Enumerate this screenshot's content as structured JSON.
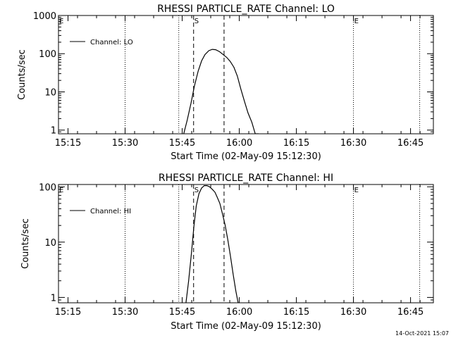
{
  "chart_data": [
    {
      "type": "line",
      "title": "RHESSI PARTICLE_RATE Channel: LO",
      "xlabel": "Start Time (02-May-09 15:12:30)",
      "ylabel": "Counts/sec",
      "yscale": "log",
      "ylim": [
        0.8,
        1000
      ],
      "xlim": [
        0,
        98.5
      ],
      "xticks": [
        {
          "x": 2.5,
          "label": "15:15"
        },
        {
          "x": 17.5,
          "label": "15:30"
        },
        {
          "x": 32.5,
          "label": "15:45"
        },
        {
          "x": 47.5,
          "label": "16:00"
        },
        {
          "x": 62.5,
          "label": "16:15"
        },
        {
          "x": 77.5,
          "label": "16:30"
        },
        {
          "x": 92.5,
          "label": "16:45"
        }
      ],
      "yticks": [
        {
          "y": 1,
          "label": "1"
        },
        {
          "y": 10,
          "label": "10"
        },
        {
          "y": 100,
          "label": "100"
        },
        {
          "y": 1000,
          "label": "1000"
        }
      ],
      "legend": {
        "label": "Channel: LO",
        "position": "top-left"
      },
      "series": [
        {
          "name": "Channel: LO",
          "x": [
            32.9,
            33.8,
            34.8,
            35.7,
            36.7,
            37.6,
            38.5,
            39.5,
            40.4,
            41.3,
            42.3,
            43.2,
            44.2,
            45.1,
            46.1,
            47.0,
            47.9,
            48.9,
            49.8,
            50.8,
            51.7,
            52.6
          ],
          "y": [
            0.8,
            1.8,
            5,
            14,
            35,
            65,
            95,
            120,
            130,
            127,
            113,
            96,
            80,
            63,
            44,
            26,
            12,
            5.5,
            2.8,
            1.6,
            0.8,
            0.8
          ]
        }
      ],
      "markers": [
        {
          "kind": "dashed",
          "x": 35.5,
          "label": "S"
        },
        {
          "kind": "dashed",
          "x": 43.5,
          "label": ""
        },
        {
          "kind": "dotted",
          "x": 0,
          "label": "E"
        },
        {
          "kind": "dotted",
          "x": 17.5,
          "label": ""
        },
        {
          "kind": "dotted",
          "x": 31.6,
          "label": ""
        },
        {
          "kind": "dotted",
          "x": 77.5,
          "label": "E"
        },
        {
          "kind": "dotted",
          "x": 94.9,
          "label": ""
        }
      ]
    },
    {
      "type": "line",
      "title": "RHESSI PARTICLE_RATE Channel: HI",
      "xlabel": "Start Time (02-May-09 15:12:30)",
      "ylabel": "Counts/sec",
      "yscale": "log",
      "ylim": [
        0.8,
        110
      ],
      "xlim": [
        0,
        98.5
      ],
      "xticks": [
        {
          "x": 2.5,
          "label": "15:15"
        },
        {
          "x": 17.5,
          "label": "15:30"
        },
        {
          "x": 32.5,
          "label": "15:45"
        },
        {
          "x": 47.5,
          "label": "16:00"
        },
        {
          "x": 62.5,
          "label": "16:15"
        },
        {
          "x": 77.5,
          "label": "16:30"
        },
        {
          "x": 92.5,
          "label": "16:45"
        }
      ],
      "yticks": [
        {
          "y": 1,
          "label": "1"
        },
        {
          "y": 10,
          "label": "10"
        },
        {
          "y": 100,
          "label": "100"
        }
      ],
      "legend": {
        "label": "Channel: HI",
        "position": "top-left"
      },
      "series": [
        {
          "name": "Channel: HI",
          "x": [
            33.5,
            34.2,
            34.9,
            35.6,
            36.2,
            36.9,
            37.6,
            38.3,
            39.0,
            39.7,
            40.4,
            41.1,
            41.7,
            42.4,
            43.1,
            43.8,
            44.5,
            45.2,
            45.9,
            46.6,
            47.2
          ],
          "y": [
            0.8,
            2.0,
            6,
            20,
            45,
            75,
            95,
            105,
            105,
            100,
            90,
            80,
            65,
            50,
            32,
            20,
            11,
            5.5,
            2.6,
            1.3,
            0.8
          ]
        }
      ],
      "markers": [
        {
          "kind": "dashed",
          "x": 35.5,
          "label": "S"
        },
        {
          "kind": "dashed",
          "x": 43.5,
          "label": ""
        },
        {
          "kind": "dotted",
          "x": 0,
          "label": "E"
        },
        {
          "kind": "dotted",
          "x": 17.5,
          "label": ""
        },
        {
          "kind": "dotted",
          "x": 31.6,
          "label": ""
        },
        {
          "kind": "dotted",
          "x": 77.5,
          "label": "E"
        },
        {
          "kind": "dotted",
          "x": 94.9,
          "label": ""
        }
      ]
    }
  ],
  "footer": {
    "timestamp": "14-Oct-2021 15:07"
  }
}
